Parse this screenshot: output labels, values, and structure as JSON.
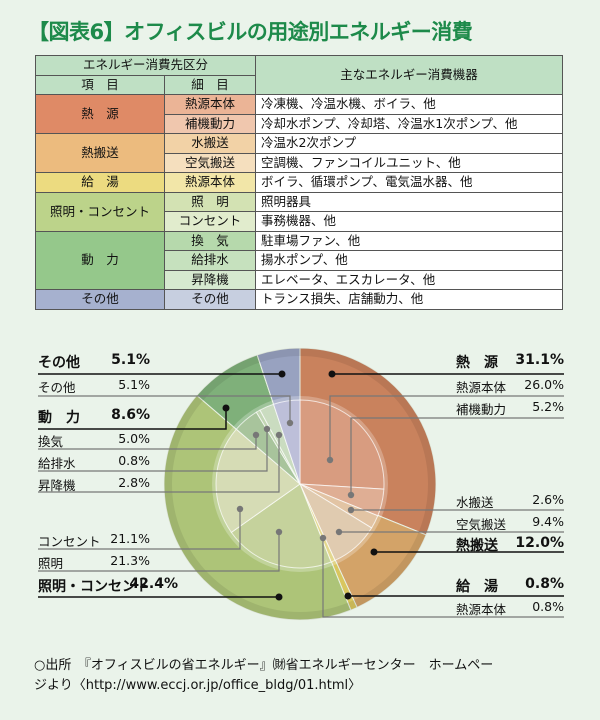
{
  "title": "【図表6】オフィスビルの用途別エネルギー消費",
  "table": {
    "header_group": "エネルギー消費先区分",
    "header_item": "項　目",
    "header_detail": "細　目",
    "header_equipment": "主なエネルギー消費機器",
    "rows": [
      {
        "item": "熱　源",
        "detail": "熱源本体",
        "equipment": "冷凍機、冷温水機、ボイラ、他"
      },
      {
        "item": "",
        "detail": "補機動力",
        "equipment": "冷却水ポンプ、冷却塔、冷温水1次ポンプ、他"
      },
      {
        "item": "熱搬送",
        "detail": "水搬送",
        "equipment": "冷温水2次ポンプ"
      },
      {
        "item": "",
        "detail": "空気搬送",
        "equipment": "空調機、ファンコイルユニット、他"
      },
      {
        "item": "給　湯",
        "detail": "熱源本体",
        "equipment": "ボイラ、循環ポンプ、電気温水器、他"
      },
      {
        "item": "照明・コンセント",
        "detail": "照　明",
        "equipment": "照明器具"
      },
      {
        "item": "",
        "detail": "コンセント",
        "equipment": "事務機器、他"
      },
      {
        "item": "動　力",
        "detail": "換　気",
        "equipment": "駐車場ファン、他"
      },
      {
        "item": "",
        "detail": "給排水",
        "equipment": "揚水ポンプ、他"
      },
      {
        "item": "",
        "detail": "昇降機",
        "equipment": "エレベータ、エスカレータ、他"
      },
      {
        "item": "その他",
        "detail": "その他",
        "equipment": "トランス損失、店舗動力、他"
      }
    ]
  },
  "chart_data": {
    "type": "pie",
    "title": "オフィスビルの用途別エネルギー消費",
    "layout": "nested pie: outer ring = 項目 (category), inner pie = 細目 (subcategory)",
    "series": [
      {
        "name": "項目",
        "ring": "outer",
        "categories": [
          "熱源",
          "熱搬送",
          "給湯",
          "照明・コンセント",
          "動力",
          "その他"
        ],
        "values": [
          31.1,
          12.0,
          0.8,
          42.4,
          8.6,
          5.1
        ]
      },
      {
        "name": "細目",
        "ring": "inner",
        "categories": [
          "熱源本体",
          "補機動力",
          "水搬送",
          "空気搬送",
          "給湯 熱源本体",
          "照明",
          "コンセント",
          "換気",
          "給排水",
          "昇降機",
          "その他"
        ],
        "values": [
          26.0,
          5.2,
          2.6,
          9.4,
          0.8,
          21.3,
          21.1,
          5.0,
          0.8,
          2.8,
          5.1
        ]
      }
    ],
    "colors": {
      "熱源": "#c98560",
      "熱搬送": "#d4a46a",
      "給湯": "#d8c463",
      "照明・コンセント": "#adc47a",
      "動力": "#7fb07b",
      "その他": "#9aa3c2"
    },
    "unit": "%"
  },
  "labels": {
    "sonota_main": {
      "name": "その他",
      "value": "5.1%"
    },
    "sonota_sub": {
      "name": "その他",
      "value": "5.1%"
    },
    "doryoku_main": {
      "name": "動　力",
      "value": "8.6%"
    },
    "kanki": {
      "name": "換気",
      "value": "5.0%"
    },
    "kyuhaisui": {
      "name": "給排水",
      "value": "0.8%"
    },
    "shokoki": {
      "name": "昇降機",
      "value": "2.8%"
    },
    "consent": {
      "name": "コンセント",
      "value": "21.1%"
    },
    "shomei": {
      "name": "照明",
      "value": "21.3%"
    },
    "shomei_main": {
      "name": "照明・コンセント",
      "value": "42.4%"
    },
    "netsugen_main": {
      "name": "熱　源",
      "value": "31.1%"
    },
    "netsugen_honntai": {
      "name": "熱源本体",
      "value": "26.0%"
    },
    "hokidoryoku": {
      "name": "補機動力",
      "value": "5.2%"
    },
    "mizuhanso": {
      "name": "水搬送",
      "value": "2.6%"
    },
    "kukihanso": {
      "name": "空気搬送",
      "value": "9.4%"
    },
    "netsuhanso_main": {
      "name": "熱搬送",
      "value": "12.0%"
    },
    "kyuto_main": {
      "name": "給　湯",
      "value": "0.8%"
    },
    "kyuto_sub": {
      "name": "熱源本体",
      "value": "0.8%"
    }
  },
  "source": {
    "line1": "○出所　『オフィスビルの省エネルギー』㈶省エネルギーセンター　ホームペー",
    "line2": "ジより〈http://www.eccj.or.jp/office_bldg/01.html〉"
  }
}
